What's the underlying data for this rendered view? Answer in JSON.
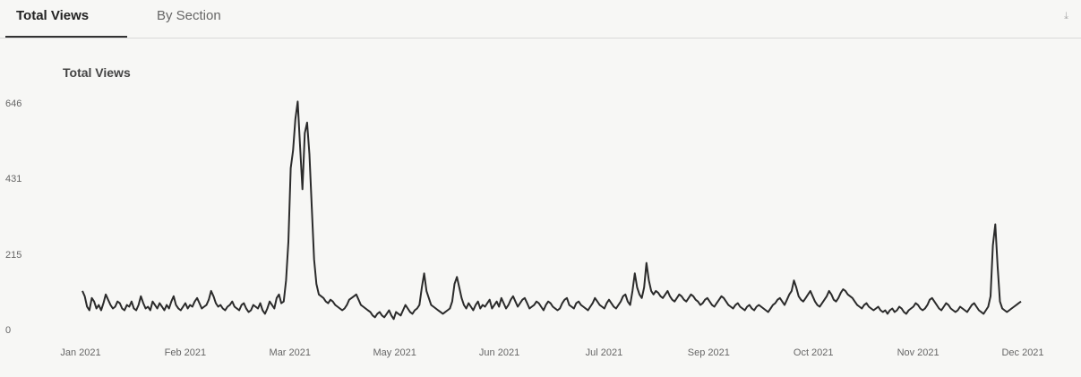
{
  "tabs": [
    {
      "label": "Total Views",
      "active": true
    },
    {
      "label": "By Section",
      "active": false
    }
  ],
  "corner_icon": {
    "name": "download-icon",
    "glyph": "⤓"
  },
  "chart_data": {
    "type": "line",
    "title": "Total Views",
    "xlabel": "",
    "ylabel": "",
    "ylim": [
      0,
      646
    ],
    "yticks": [
      0,
      215,
      431,
      646
    ],
    "ytick_labels": [
      "0",
      "215",
      "431",
      "646"
    ],
    "xlim": [
      "2021-01-01",
      "2021-12-31"
    ],
    "xtick_labels": [
      "Jan 2021",
      "Feb 2021",
      "Mar 2021",
      "May 2021",
      "Jun 2021",
      "Jul 2021",
      "Sep 2021",
      "Oct 2021",
      "Nov 2021",
      "Dec 2021"
    ],
    "grid": false,
    "line_color": "#2b2b2b",
    "series": [
      {
        "values": [
          110,
          95,
          65,
          55,
          90,
          80,
          60,
          70,
          55,
          75,
          100,
          85,
          70,
          60,
          65,
          80,
          75,
          60,
          55,
          70,
          65,
          80,
          60,
          55,
          70,
          95,
          75,
          60,
          65,
          55,
          80,
          70,
          60,
          75,
          65,
          55,
          70,
          60,
          80,
          95,
          70,
          60,
          55,
          65,
          75,
          60,
          70,
          65,
          80,
          90,
          75,
          60,
          65,
          70,
          85,
          110,
          95,
          75,
          65,
          70,
          60,
          55,
          65,
          70,
          80,
          65,
          60,
          55,
          70,
          75,
          60,
          50,
          55,
          70,
          65,
          60,
          75,
          55,
          45,
          60,
          80,
          70,
          60,
          90,
          100,
          75,
          80,
          140,
          250,
          460,
          510,
          600,
          650,
          520,
          400,
          560,
          590,
          500,
          350,
          200,
          130,
          100,
          95,
          90,
          80,
          75,
          85,
          80,
          70,
          65,
          60,
          55,
          60,
          70,
          85,
          90,
          95,
          100,
          85,
          70,
          65,
          60,
          55,
          50,
          40,
          35,
          45,
          50,
          40,
          35,
          45,
          55,
          40,
          30,
          50,
          45,
          40,
          55,
          70,
          60,
          50,
          45,
          55,
          60,
          70,
          120,
          160,
          110,
          90,
          70,
          65,
          60,
          55,
          50,
          45,
          50,
          55,
          60,
          80,
          130,
          150,
          120,
          90,
          70,
          60,
          75,
          65,
          55,
          70,
          80,
          60,
          70,
          65,
          75,
          85,
          60,
          70,
          80,
          65,
          90,
          75,
          60,
          70,
          85,
          95,
          80,
          65,
          75,
          85,
          90,
          75,
          60,
          65,
          70,
          80,
          75,
          65,
          55,
          70,
          80,
          75,
          65,
          60,
          55,
          60,
          75,
          85,
          90,
          70,
          65,
          60,
          75,
          80,
          70,
          65,
          60,
          55,
          65,
          75,
          90,
          80,
          70,
          65,
          60,
          75,
          85,
          75,
          65,
          60,
          70,
          80,
          95,
          100,
          80,
          70,
          110,
          160,
          120,
          100,
          90,
          120,
          190,
          140,
          110,
          100,
          110,
          105,
          95,
          90,
          100,
          110,
          95,
          85,
          80,
          90,
          100,
          95,
          85,
          80,
          90,
          100,
          95,
          85,
          80,
          70,
          75,
          85,
          90,
          80,
          70,
          65,
          75,
          85,
          95,
          90,
          80,
          70,
          65,
          60,
          70,
          75,
          65,
          60,
          55,
          65,
          70,
          60,
          55,
          65,
          70,
          65,
          60,
          55,
          50,
          60,
          70,
          75,
          85,
          90,
          80,
          70,
          85,
          100,
          110,
          140,
          120,
          95,
          85,
          80,
          90,
          100,
          110,
          95,
          80,
          70,
          65,
          75,
          85,
          95,
          110,
          100,
          85,
          80,
          90,
          105,
          115,
          110,
          100,
          95,
          90,
          80,
          70,
          65,
          60,
          70,
          75,
          65,
          60,
          55,
          60,
          65,
          55,
          50,
          55,
          45,
          55,
          60,
          50,
          55,
          65,
          60,
          50,
          45,
          55,
          60,
          65,
          75,
          70,
          60,
          55,
          60,
          70,
          85,
          90,
          80,
          70,
          60,
          55,
          65,
          75,
          70,
          60,
          55,
          50,
          55,
          65,
          60,
          55,
          50,
          60,
          70,
          75,
          65,
          55,
          50,
          45,
          55,
          65,
          95,
          240,
          300,
          180,
          80,
          60,
          55,
          50,
          55,
          60,
          65,
          70,
          75,
          80
        ]
      }
    ]
  }
}
